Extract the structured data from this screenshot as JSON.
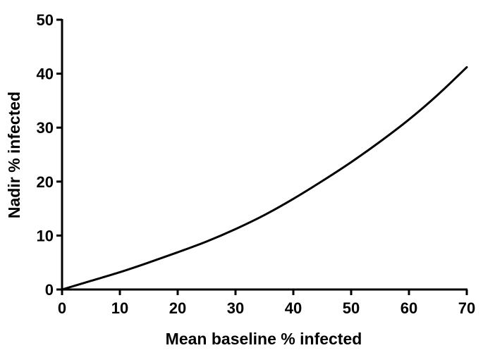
{
  "chart_data": {
    "type": "line",
    "title": "",
    "xlabel": "Mean baseline % infected",
    "ylabel": "Nadir % infected",
    "xlim": [
      0,
      70
    ],
    "ylim": [
      0,
      50
    ],
    "x_ticks": [
      0,
      10,
      20,
      30,
      40,
      50,
      60,
      70
    ],
    "y_ticks": [
      0,
      10,
      20,
      30,
      40,
      50
    ],
    "x_tick_labels": [
      "0",
      "10",
      "20",
      "30",
      "40",
      "50",
      "60",
      "70"
    ],
    "y_tick_labels": [
      "0",
      "10",
      "20",
      "30",
      "40",
      "50"
    ],
    "grid": false,
    "legend": "none",
    "series": [
      {
        "color": "#000000",
        "x": [
          0,
          5,
          10,
          15,
          20,
          25,
          30,
          35,
          40,
          45,
          50,
          55,
          60,
          65,
          70
        ],
        "y": [
          0,
          1.6,
          3.2,
          5.0,
          6.9,
          8.9,
          11.2,
          13.8,
          16.8,
          20.1,
          23.6,
          27.4,
          31.5,
          36.1,
          41.2
        ]
      }
    ]
  }
}
